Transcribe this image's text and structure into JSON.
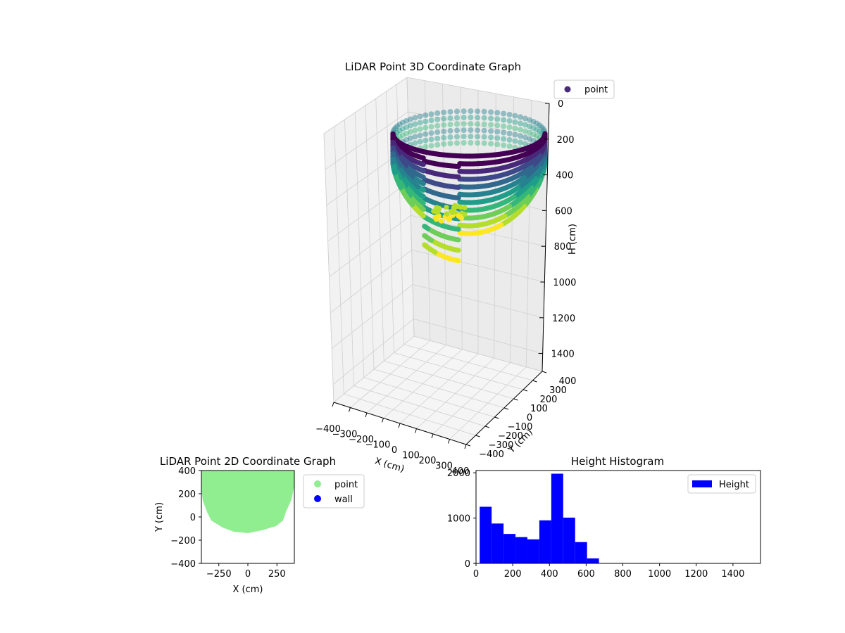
{
  "chart_data": [
    {
      "type": "scatter3d",
      "title": "LiDAR Point 3D Coordinate Graph",
      "xlabel": "X (cm)",
      "ylabel": "Y (cm)",
      "zlabel": "H (cm)",
      "xlim": [
        -400,
        400
      ],
      "ylim": [
        -400,
        400
      ],
      "zlim": [
        1500,
        0
      ],
      "xticks": [
        "−400",
        "−300",
        "−200",
        "−100",
        "0",
        "100",
        "200",
        "300",
        "400"
      ],
      "yticks": [
        "−400",
        "−300",
        "−200",
        "−100",
        "0",
        "100",
        "200",
        "300",
        "400"
      ],
      "zticks": [
        "0",
        "200",
        "400",
        "600",
        "800",
        "1000",
        "1200",
        "1400"
      ],
      "colormap": "viridis",
      "legend": {
        "position": "upper-right",
        "entries": [
          {
            "name": "point",
            "color": "#472c7a"
          }
        ]
      },
      "grid": true
    },
    {
      "type": "scatter",
      "title": "LiDAR Point 2D Coordinate Graph",
      "xlabel": "X (cm)",
      "ylabel": "Y (cm)",
      "xlim": [
        -400,
        400
      ],
      "ylim": [
        -400,
        400
      ],
      "xticks": [
        "−250",
        "0",
        "250"
      ],
      "yticks": [
        "400",
        "200",
        "0",
        "−200",
        "−400"
      ],
      "legend": {
        "position": "outside-right",
        "entries": [
          {
            "name": "point",
            "color": "#90ee90"
          },
          {
            "name": "wall",
            "color": "#0000ff"
          }
        ]
      }
    },
    {
      "type": "bar",
      "title": "Height Histogram",
      "xlim": [
        0,
        1550
      ],
      "ylim": [
        0,
        2050
      ],
      "xticks": [
        "0",
        "200",
        "400",
        "600",
        "800",
        "1000",
        "1200",
        "1400"
      ],
      "yticks": [
        "0",
        "1000",
        "2000"
      ],
      "bin_width": 65,
      "bin_starts": [
        20,
        85,
        150,
        215,
        280,
        345,
        410,
        475,
        540,
        605
      ],
      "values": [
        1250,
        880,
        650,
        580,
        530,
        950,
        1980,
        1010,
        470,
        110
      ],
      "color": "#0000ff",
      "legend": {
        "position": "upper-right",
        "entries": [
          {
            "name": "Height",
            "color": "#0000ff"
          }
        ]
      }
    }
  ]
}
